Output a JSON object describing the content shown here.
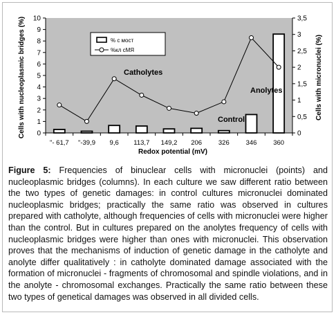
{
  "chart_data": {
    "type": "bar+line",
    "categories": [
      "\"- 61,7",
      "\"-39,9",
      "9,6",
      "113,7",
      "149,2",
      "206",
      "326",
      "346",
      "360"
    ],
    "xlabel": "Redox potential (mV)",
    "ylabel_left": "Cells with nucleoplasmic bridges (%)",
    "ylabel_right": "Cells with micronuclei (%)",
    "ylim_left": [
      0,
      10
    ],
    "ylim_right": [
      0,
      3.5
    ],
    "yticks_left": [
      "0",
      "1",
      "2",
      "3",
      "4",
      "5",
      "6",
      "7",
      "8",
      "9",
      "10"
    ],
    "yticks_right": [
      "0",
      "0,5",
      "1",
      "1,5",
      "2",
      "2,5",
      "3",
      "3,5"
    ],
    "series": [
      {
        "name": "% с мост",
        "kind": "bar",
        "axis": "left",
        "values": [
          0.3,
          0.15,
          0.65,
          0.6,
          0.35,
          0.4,
          0.2,
          1.6,
          8.6
        ]
      },
      {
        "name": "%кл сМЯ",
        "kind": "line",
        "axis": "right",
        "values": [
          0.85,
          0.35,
          1.65,
          1.15,
          0.75,
          0.6,
          0.95,
          2.9,
          2.0
        ]
      }
    ],
    "annotations": [
      "Catholytes",
      "Control",
      "Anolytes"
    ],
    "grid": false,
    "legend": "top-center",
    "colors": {
      "plot_bg": "#c0c0c0",
      "bar_fill": "#ffffff",
      "bar_stroke": "#000000",
      "line": "#000000",
      "marker_fill": "#ffffff"
    }
  },
  "caption": {
    "label": "Figure 5:",
    "text": "Frequencies of binuclear cells with micronuclei (points) and nucleoplasmic bridges (columns). In each culture we saw different ratio between the two types of genetic damages: in control cultures micronuclei dominated nucleoplasmic bridges; practically the same ratio was observed in cultures prepared with catholyte, although frequencies of cells with micronuclei were higher than the control. But in cultures prepared on the anolytes frequency of cells with nucleoplasmic bridges were higher than ones with micronuclei. This observation proves that the mechanisms of induction of genetic damage in the catholyte and anolyte differ qualitatively : in catholyte dominated damage associated with the formation of micronuclei - fragments of chromosomal and spindle violations, and in the anolyte - chromosomal exchanges. Practically the same ratio between these two types of genetical damages was observed in all divided cells."
  }
}
